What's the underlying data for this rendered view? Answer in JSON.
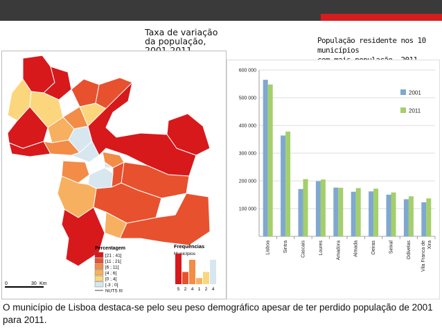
{
  "map": {
    "title": "Taxa de variação\nda população,\n2001-2011",
    "scale": {
      "zero": "0",
      "thirty": "30",
      "unit": "Km"
    },
    "legend": {
      "title": "Percentagem",
      "classes": [
        {
          "label": "[21 ; 41]",
          "color": "#d7191c"
        },
        {
          "label": "[11 ; 21[",
          "color": "#e8512e"
        },
        {
          "label": "[6 ; 11[",
          "color": "#f28c47"
        },
        {
          "label": "[4 ; 6[",
          "color": "#f7b05f"
        },
        {
          "label": "[0 ; 4[",
          "color": "#fbd67d"
        },
        {
          "label": "[-3 ; 0[",
          "color": "#d7e6ef"
        }
      ],
      "nuts_label": "NUTS III"
    },
    "frequencies": {
      "title": "Frequências",
      "subtitle": "Municípios",
      "values": [
        5,
        2,
        4,
        1,
        2,
        4
      ]
    }
  },
  "chart_data": {
    "type": "bar",
    "title": "População residente nos 10 municípios\ncom mais população, 2011",
    "categories": [
      "Lisboa",
      "Sintra",
      "Cascais",
      "Loures",
      "Amadora",
      "Almada",
      "Oeiras",
      "Seixal",
      "Odivelas",
      "Vila Franca de\nXira"
    ],
    "series": [
      {
        "name": "2001",
        "color": "#7fa8cf",
        "values": [
          564657,
          363749,
          170683,
          199059,
          175872,
          160825,
          162128,
          150271,
          133847,
          122908
        ]
      },
      {
        "name": "2011",
        "color": "#a4cf6b",
        "values": [
          547733,
          377835,
          206479,
          205054,
          175136,
          174030,
          172120,
          158269,
          144549,
          136886
        ]
      }
    ],
    "ylim": [
      0,
      600000
    ],
    "yticks": [
      100000,
      200000,
      300000,
      400000,
      500000,
      600000
    ],
    "ytick_labels": [
      "100 000",
      "200 000",
      "300 000",
      "400 000",
      "500 000",
      "600 000"
    ],
    "legend_position": "top-right",
    "xlabel": "",
    "ylabel": ""
  },
  "caption": "O município de Lisboa destaca-se pelo seu peso demográfico apesar de ter perdido população de 2001 para 2011."
}
